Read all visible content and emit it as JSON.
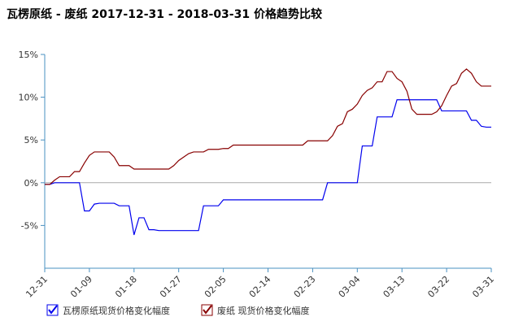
{
  "chart_data": {
    "type": "line",
    "title": "瓦楞原纸 - 废纸 2017-12-31 - 2018-03-31 价格趋势比较",
    "categories": [
      "12-31",
      null,
      null,
      null,
      null,
      null,
      null,
      null,
      null,
      "01-09",
      null,
      null,
      null,
      null,
      null,
      null,
      null,
      null,
      "01-18",
      null,
      null,
      null,
      null,
      null,
      null,
      null,
      null,
      "01-27",
      null,
      null,
      null,
      null,
      null,
      null,
      null,
      null,
      "02-05",
      null,
      null,
      null,
      null,
      null,
      null,
      null,
      null,
      "02-14",
      null,
      null,
      null,
      null,
      null,
      null,
      null,
      null,
      "02-23",
      null,
      null,
      null,
      null,
      null,
      null,
      null,
      null,
      "03-04",
      null,
      null,
      null,
      null,
      null,
      null,
      null,
      null,
      "03-13",
      null,
      null,
      null,
      null,
      null,
      null,
      null,
      null,
      "03-22",
      null,
      null,
      null,
      null,
      null,
      null,
      null,
      null,
      "03-31"
    ],
    "series": [
      {
        "name": "瓦楞原纸现货价格变化幅度",
        "color": "#0000ee",
        "values": [
          -0.2,
          -0.2,
          0,
          0,
          0,
          0,
          0,
          0,
          -3.3,
          -3.3,
          -2.5,
          -2.4,
          -2.4,
          -2.4,
          -2.4,
          -2.7,
          -2.7,
          -2.7,
          -6.1,
          -4.1,
          -4.1,
          -5.5,
          -5.5,
          -5.6,
          -5.6,
          -5.6,
          -5.6,
          -5.6,
          -5.6,
          -5.6,
          -5.6,
          -5.6,
          -2.7,
          -2.7,
          -2.7,
          -2.7,
          -2,
          -2,
          -2,
          -2,
          -2,
          -2,
          -2,
          -2,
          -2,
          -2,
          -2,
          -2,
          -2,
          -2,
          -2,
          -2,
          -2,
          -2,
          -2,
          -2,
          -2,
          0,
          0,
          0,
          0,
          0,
          0,
          0,
          4.3,
          4.3,
          4.3,
          7.7,
          7.7,
          7.7,
          7.7,
          9.7,
          9.7,
          9.7,
          9.7,
          9.7,
          9.7,
          9.7,
          9.7,
          9.7,
          8.4,
          8.4,
          8.4,
          8.4,
          8.4,
          8.4,
          7.3,
          7.3,
          6.6,
          6.5,
          6.5
        ]
      },
      {
        "name": "废纸 现货价格变化幅度",
        "color": "#880000",
        "values": [
          -0.2,
          -0.2,
          0.3,
          0.7,
          0.7,
          0.7,
          1.3,
          1.3,
          2.3,
          3.2,
          3.6,
          3.6,
          3.6,
          3.6,
          3,
          2,
          2,
          2,
          1.6,
          1.6,
          1.6,
          1.6,
          1.6,
          1.6,
          1.6,
          1.6,
          2,
          2.6,
          3,
          3.4,
          3.6,
          3.6,
          3.6,
          3.9,
          3.9,
          3.9,
          4,
          4,
          4.4,
          4.4,
          4.4,
          4.4,
          4.4,
          4.4,
          4.4,
          4.4,
          4.4,
          4.4,
          4.4,
          4.4,
          4.4,
          4.4,
          4.4,
          4.9,
          4.9,
          4.9,
          4.9,
          4.9,
          5.5,
          6.6,
          6.9,
          8.3,
          8.6,
          9.2,
          10.2,
          10.8,
          11.1,
          11.8,
          11.8,
          13,
          13,
          12.2,
          11.8,
          10.7,
          8.6,
          8,
          8,
          8,
          8,
          8.3,
          9,
          10.2,
          11.3,
          11.6,
          12.8,
          13.3,
          12.8,
          11.8,
          11.3,
          11.3,
          11.3
        ]
      }
    ],
    "ylim": [
      -10,
      15
    ],
    "yticks": [
      {
        "value": -5,
        "label": "-5%"
      },
      {
        "value": 0,
        "label": "0%"
      },
      {
        "value": 5,
        "label": "5%"
      },
      {
        "value": 10,
        "label": "10%"
      },
      {
        "value": 15,
        "label": "15%"
      }
    ]
  }
}
